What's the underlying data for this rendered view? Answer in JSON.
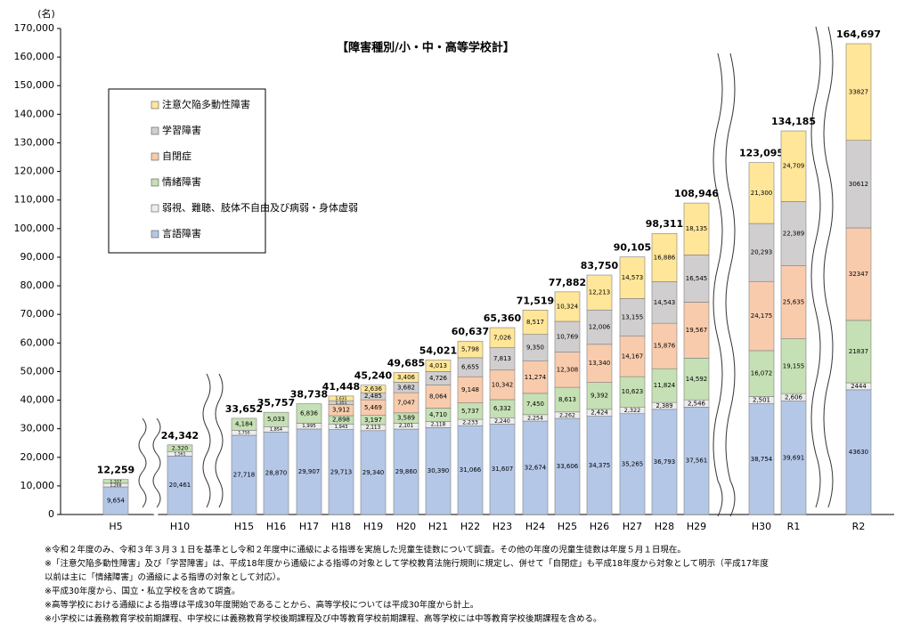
{
  "chart_data": {
    "type": "stacked-bar",
    "title": "【障害種別/小・中・高等学校計】",
    "y_unit": "(名)",
    "categories": [
      "H5",
      "H10",
      "H15",
      "H16",
      "H17",
      "H18",
      "H19",
      "H20",
      "H21",
      "H22",
      "H23",
      "H24",
      "H25",
      "H26",
      "H27",
      "H28",
      "H29",
      "H30",
      "R1",
      "R2"
    ],
    "series": [
      {
        "name": "言語障害",
        "color": "#b4c7e7",
        "values": [
          9654,
          20461,
          27718,
          28870,
          29907,
          29713,
          29340,
          29860,
          30390,
          31066,
          31607,
          32674,
          33606,
          34375,
          35265,
          36793,
          37561,
          38754,
          39691,
          43630
        ],
        "value_labels": [
          "9,654",
          "20,461",
          "27,718",
          "28,870",
          "29,907",
          "29,713",
          "29,340",
          "29,860",
          "30,390",
          "31,066",
          "31,607",
          "32,674",
          "33,606",
          "34,375",
          "35,265",
          "36,793",
          "37,561",
          "38,754",
          "39,691",
          "43630"
        ]
      },
      {
        "name": "弱視、難聴、肢体不自由及び病弱・身体虚弱",
        "color": "#ededed",
        "values": [
          1268,
          1561,
          1750,
          1854,
          1995,
          1943,
          2113,
          2101,
          2118,
          2233,
          2240,
          2254,
          2262,
          2424,
          2322,
          2389,
          2546,
          2501,
          2606,
          2444
        ],
        "value_labels": [
          "1,268",
          "1,561",
          "1,750",
          "1,854",
          "1,995",
          "1,943",
          "2,113",
          "2,101",
          "2,118",
          "2,233",
          "2,240",
          "2,254",
          "2,262",
          "2,424",
          "2,322",
          "2,389",
          "2,546",
          "2,501",
          "2,606",
          "2444"
        ]
      },
      {
        "name": "情緒障害",
        "color": "#c5e0b4",
        "values": [
          1337,
          2320,
          4184,
          5033,
          6836,
          2898,
          3197,
          3589,
          4710,
          5737,
          6332,
          7450,
          8613,
          9392,
          10623,
          11824,
          14592,
          16072,
          19155,
          21837
        ],
        "value_labels": [
          "1,337",
          "2,320",
          "4,184",
          "5,033",
          "6,836",
          "2,898",
          "3,197",
          "3,589",
          "4,710",
          "5,737",
          "6,332",
          "7,450",
          "8,613",
          "9,392",
          "10,623",
          "11,824",
          "14,592",
          "16,072",
          "19,155",
          "21837"
        ]
      },
      {
        "name": "自閉症",
        "color": "#f8cbad",
        "values": [
          null,
          null,
          null,
          null,
          null,
          3912,
          5469,
          7047,
          8064,
          9148,
          10342,
          11274,
          12308,
          13340,
          14167,
          15876,
          19567,
          24175,
          25635,
          32347
        ],
        "value_labels": [
          null,
          null,
          null,
          null,
          null,
          "3,912",
          "5,469",
          "7,047",
          "8,064",
          "9,148",
          "10,342",
          "11,274",
          "12,308",
          "13,340",
          "14,167",
          "15,876",
          "19,567",
          "24,175",
          "25,635",
          "32347"
        ]
      },
      {
        "name": "学習障害",
        "color": "#d0cece",
        "values": [
          null,
          null,
          null,
          null,
          null,
          1351,
          2485,
          3682,
          4726,
          6655,
          7813,
          9350,
          10769,
          12006,
          13155,
          14543,
          16545,
          20293,
          22389,
          30612
        ],
        "value_labels": [
          null,
          null,
          null,
          null,
          null,
          "1,351",
          "2,485",
          "3,682",
          "4,726",
          "6,655",
          "7,813",
          "9,350",
          "10,769",
          "12,006",
          "13,155",
          "14,543",
          "16,545",
          "20,293",
          "22,389",
          "30612"
        ]
      },
      {
        "name": "注意欠陥多動性障害",
        "color": "#ffe699",
        "values": [
          null,
          null,
          null,
          null,
          null,
          1631,
          2636,
          3406,
          4013,
          5798,
          7026,
          8517,
          10324,
          12213,
          14573,
          16886,
          18135,
          21300,
          24709,
          33827
        ],
        "value_labels": [
          null,
          null,
          null,
          null,
          null,
          "1,631",
          "2,636",
          "3,406",
          "4,013",
          "5,798",
          "7,026",
          "8,517",
          "10,324",
          "12,213",
          "14,573",
          "16,886",
          "18,135",
          "21,300",
          "24,709",
          "33827"
        ]
      }
    ],
    "totals": [
      12259,
      24342,
      33652,
      35757,
      38738,
      41448,
      45240,
      49685,
      54021,
      60637,
      65360,
      71519,
      77882,
      83750,
      90105,
      98311,
      108946,
      123095,
      134185,
      164697
    ],
    "total_labels": [
      "12,259",
      "24,342",
      "33,652",
      "35,757",
      "38,738",
      "41,448",
      "45,240",
      "49,685",
      "54,021",
      "60,637",
      "65,360",
      "71,519",
      "77,882",
      "83,750",
      "90,105",
      "98,311",
      "108,946",
      "123,095",
      "134,185",
      "164,697"
    ],
    "ylim": [
      0,
      170000
    ],
    "yticks": [
      0,
      {
        "value": 10000,
        "label": "10,000"
      },
      {
        "value": 20000,
        "label": "20,000"
      },
      {
        "value": 30000,
        "label": "30,000"
      },
      {
        "value": 40000,
        "label": "40,000"
      },
      {
        "value": 50000,
        "label": "50,000"
      },
      {
        "value": 60000,
        "label": "60,000"
      },
      {
        "value": 70000,
        "label": "70,000"
      },
      {
        "value": 80000,
        "label": "80,000"
      },
      {
        "value": 90000,
        "label": "90,000"
      },
      {
        "value": 100000,
        "label": "100,000"
      },
      {
        "value": 110000,
        "label": "110,000"
      },
      {
        "value": 120000,
        "label": "120,000"
      },
      {
        "value": 130000,
        "label": "130,000"
      },
      {
        "value": 140000,
        "label": "140,000"
      },
      {
        "value": 150000,
        "label": "150,000"
      },
      {
        "value": 160000,
        "label": "160,000"
      },
      {
        "value": 170000,
        "label": "170,000"
      }
    ],
    "notes": [
      "※令和２年度のみ、令和３年３月３１日を基準とし令和２年度中に通級による指導を実施した児童生徒数について調査。その他の年度の児童生徒数は年度５月１日現在。",
      "※「注意欠陥多動性障害」及び「学習障害」は、平成18年度から通級による指導の対象として学校教育法施行規則に規定し、併せて「自閉症」も平成18年度から対象として明示（平成17年度",
      "以前は主に「情緒障害」の通級による指導の対象として対応）。",
      "※平成30年度から、国立・私立学校を含めて調査。",
      "※高等学校における通級による指導は平成30年度開始であることから、高等学校については平成30年度から計上。",
      "※小学校には義務教育学校前期課程、中学校には義務教育学校後期課程及び中等教育学校前期課程、高等学校には中等教育学校後期課程を含める。"
    ]
  }
}
